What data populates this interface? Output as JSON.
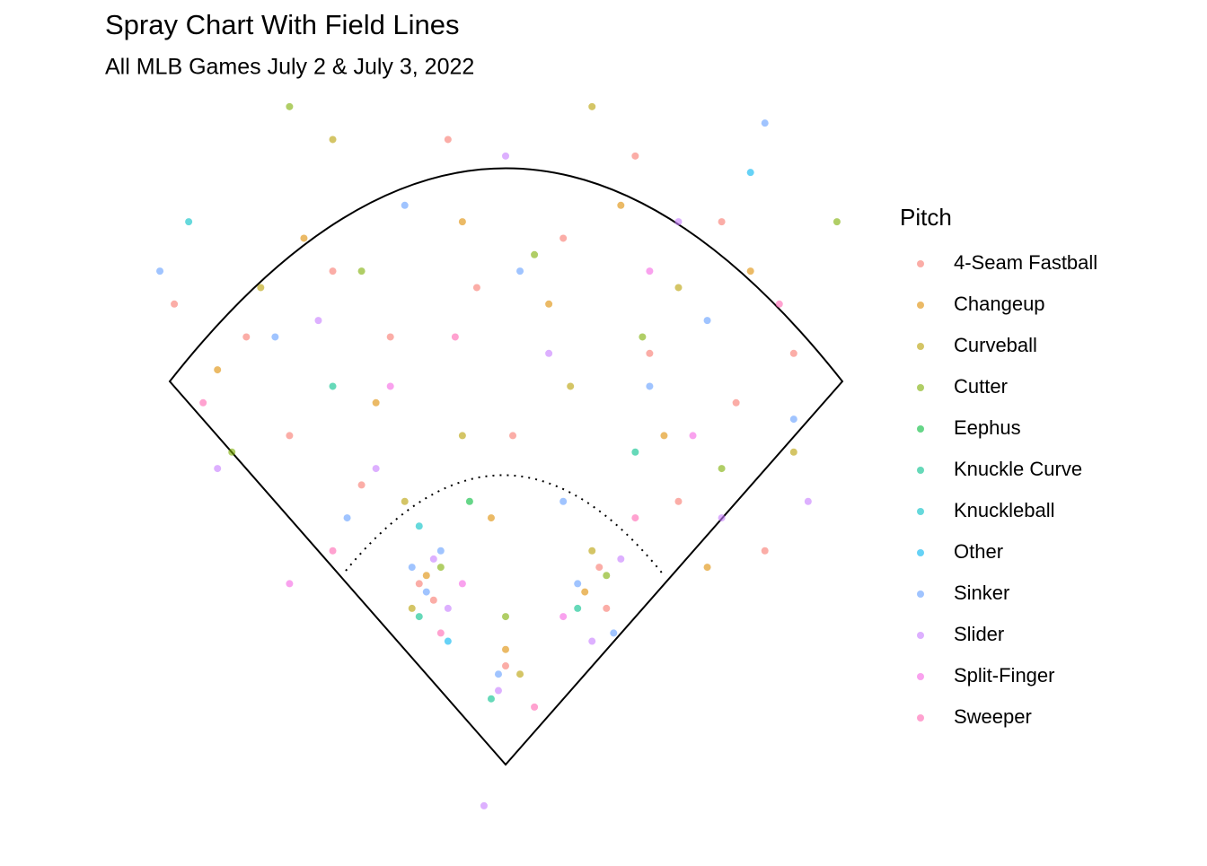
{
  "chart_data": {
    "type": "scatter",
    "title": "Spray Chart With Field Lines",
    "subtitle": "All MLB Games July 2 & July 3, 2022",
    "legend_title": "Pitch",
    "legend_position": "right",
    "xlim": [
      -250,
      250
    ],
    "ylim": [
      -20,
      440
    ],
    "series": [
      {
        "name": "4-Seam Fastball",
        "color": "#F8766D",
        "x": [
          -120,
          -80,
          40,
          100,
          -150,
          160,
          -40,
          -60,
          -50,
          65,
          70,
          0,
          5,
          -180,
          150,
          200,
          -100,
          120,
          -20,
          90,
          -230,
          180
        ],
        "y": [
          300,
          260,
          320,
          250,
          200,
          220,
          380,
          110,
          100,
          120,
          95,
          60,
          200,
          260,
          330,
          250,
          170,
          160,
          290,
          370,
          280,
          130
        ]
      },
      {
        "name": "Changeup",
        "color": "#DE8C00",
        "x": [
          -90,
          30,
          -140,
          110,
          -55,
          55,
          0,
          -10,
          170,
          -200,
          80,
          -30,
          140
        ],
        "y": [
          220,
          280,
          320,
          200,
          115,
          105,
          70,
          150,
          300,
          240,
          340,
          330,
          120
        ]
      },
      {
        "name": "Curveball",
        "color": "#B79F00",
        "x": [
          -70,
          45,
          -170,
          120,
          -65,
          60,
          10,
          -120,
          60,
          200,
          -30
        ],
        "y": [
          160,
          230,
          290,
          290,
          95,
          130,
          55,
          380,
          400,
          190,
          200
        ]
      },
      {
        "name": "Cutter",
        "color": "#7CAE00",
        "x": [
          -100,
          20,
          -45,
          70,
          150,
          -190,
          -150,
          0,
          230,
          95
        ],
        "y": [
          300,
          310,
          120,
          115,
          180,
          190,
          400,
          90,
          330,
          260
        ]
      },
      {
        "name": "Eephus",
        "color": "#00BA38",
        "x": [
          -25
        ],
        "y": [
          160
        ]
      },
      {
        "name": "Knuckle Curve",
        "color": "#00C08B",
        "x": [
          -60,
          90,
          -10,
          -120,
          50
        ],
        "y": [
          90,
          190,
          40,
          230,
          95
        ]
      },
      {
        "name": "Knuckleball",
        "color": "#00BFC4",
        "x": [
          -220,
          -60
        ],
        "y": [
          330,
          145
        ]
      },
      {
        "name": "Other",
        "color": "#00B4F0",
        "x": [
          170,
          -40
        ],
        "y": [
          360,
          75
        ]
      },
      {
        "name": "Sinker",
        "color": "#619CFF",
        "x": [
          -55,
          -45,
          -65,
          50,
          75,
          -5,
          100,
          -160,
          -70,
          140,
          10,
          -110,
          200,
          -240,
          40,
          180
        ],
        "y": [
          105,
          130,
          120,
          110,
          80,
          55,
          230,
          260,
          340,
          270,
          300,
          150,
          210,
          300,
          160,
          390
        ]
      },
      {
        "name": "Slider",
        "color": "#C77CFF",
        "x": [
          -50,
          -40,
          60,
          80,
          -5,
          -130,
          30,
          120,
          -90,
          210,
          -200,
          0,
          -15,
          150
        ],
        "y": [
          125,
          95,
          75,
          125,
          45,
          270,
          250,
          330,
          180,
          160,
          180,
          370,
          -25,
          150
        ]
      },
      {
        "name": "Split-Finger",
        "color": "#F564E3",
        "x": [
          -80,
          100,
          -30,
          40,
          -150,
          130
        ],
        "y": [
          230,
          300,
          110,
          90,
          110,
          200
        ]
      },
      {
        "name": "Sweeper",
        "color": "#FF64B0",
        "x": [
          -120,
          90,
          -35,
          190,
          -45,
          20,
          -210
        ],
        "y": [
          130,
          150,
          260,
          280,
          80,
          35,
          220
        ]
      }
    ]
  }
}
